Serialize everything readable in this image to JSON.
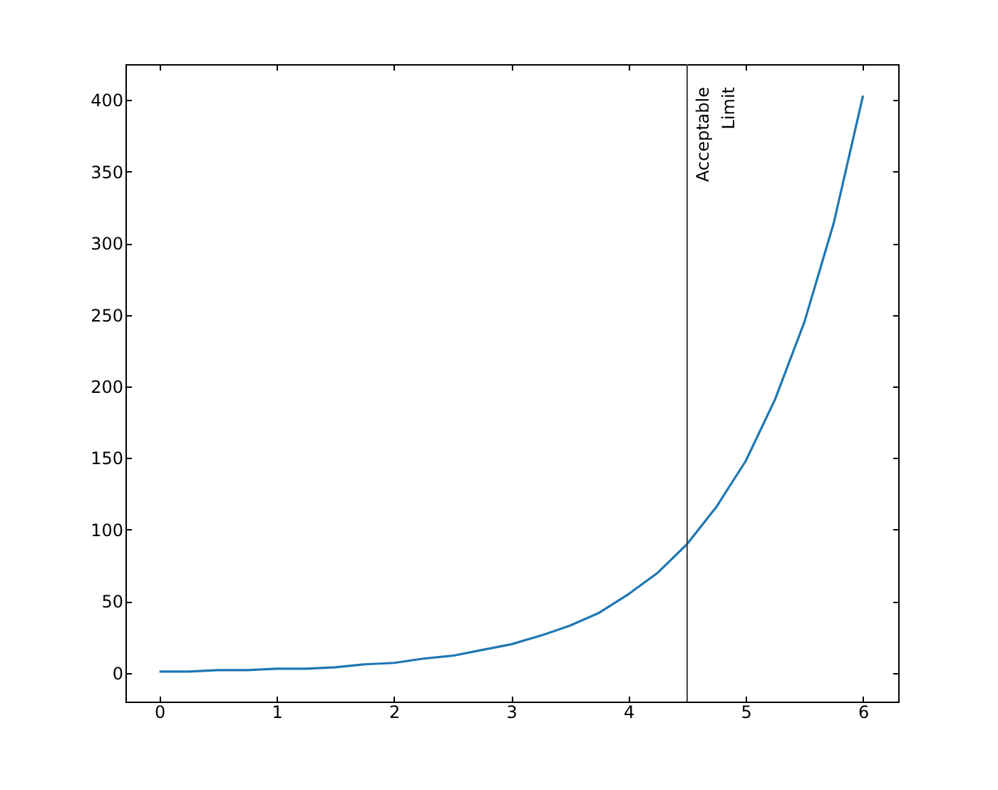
{
  "chart_data": {
    "type": "line",
    "x": [
      0,
      0.25,
      0.5,
      0.75,
      1,
      1.25,
      1.5,
      1.75,
      2,
      2.25,
      2.5,
      2.75,
      3,
      3.25,
      3.5,
      3.75,
      4,
      4.25,
      4.5,
      4.75,
      5,
      5.25,
      5.5,
      5.75,
      6
    ],
    "series": [
      {
        "color": "#1f77b4",
        "values": [
          1,
          1,
          2,
          2,
          3,
          3,
          4,
          6,
          7,
          10,
          12,
          16,
          20,
          26,
          33,
          42,
          55,
          70,
          90,
          116,
          148,
          191,
          245,
          314,
          403
        ]
      }
    ],
    "xlim": [
      -0.29,
      6.3
    ],
    "ylim": [
      -20,
      425
    ],
    "xticks": [
      0,
      1,
      2,
      3,
      4,
      5,
      6
    ],
    "yticks": [
      0,
      50,
      100,
      150,
      200,
      250,
      300,
      350,
      400
    ],
    "ref_lines": [
      {
        "axis": "x",
        "value": 4.5,
        "label": "Acceptable\nLimit",
        "color": "#404040"
      }
    ],
    "grid": false,
    "marker": "none",
    "line_style": "solid"
  }
}
